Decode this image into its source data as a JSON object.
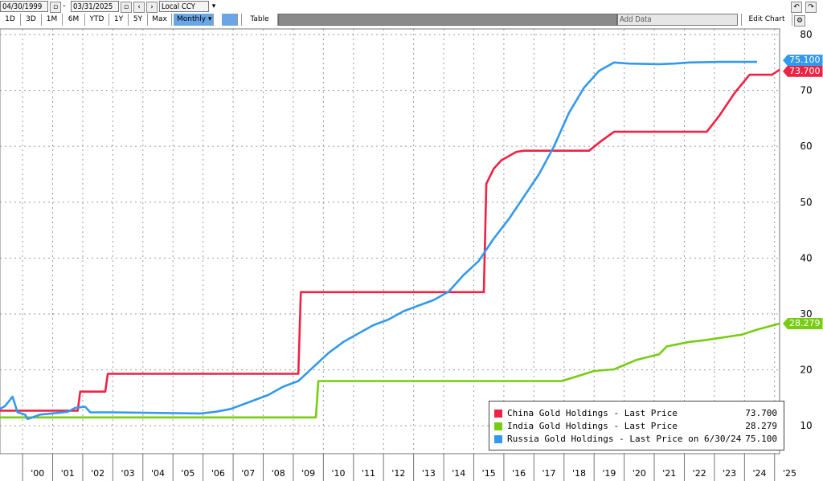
{
  "toolbar": {
    "start_date": "04/30/1999",
    "end_date": "03/31/2025",
    "currency": "Local CCY",
    "ranges": [
      "1D",
      "3D",
      "1M",
      "6M",
      "YTD",
      "1Y",
      "5Y",
      "Max"
    ],
    "frequency": "Monthly",
    "table_label": "Table",
    "add_data_placeholder": "Add Data",
    "edit_chart_label": "Edit Chart"
  },
  "colors": {
    "china": "#ee2244",
    "india": "#77cc11",
    "russia": "#3399ee"
  },
  "last_value_tags": {
    "china": "73.700",
    "india": "28.279",
    "russia": "75.100"
  },
  "legend": [
    {
      "name": "China Gold Holdings - Last Price",
      "value": "73.700",
      "color": "#ee2244"
    },
    {
      "name": "India Gold Holdings - Last Price",
      "value": "28.279",
      "color": "#77cc11"
    },
    {
      "name": "Russia Gold Holdings - Last Price on 6/30/24",
      "value": "75.100",
      "color": "#3399ee"
    }
  ],
  "chart_data": {
    "type": "line",
    "title": "",
    "xlabel": "",
    "ylabel": "",
    "x_ticks": [
      "'00",
      "'01",
      "'02",
      "'03",
      "'04",
      "'05",
      "'06",
      "'07",
      "'08",
      "'09",
      "'10",
      "'11",
      "'12",
      "'13",
      "'14",
      "'15",
      "'16",
      "'17",
      "'18",
      "'19",
      "'20",
      "'21",
      "'22",
      "'23",
      "'24",
      "'25"
    ],
    "y_ticks": [
      10,
      20,
      30,
      40,
      50,
      60,
      70,
      80
    ],
    "ylim": [
      5,
      81
    ],
    "xlim": [
      "1999-04",
      "2025-03"
    ],
    "grid": true,
    "legend_position": "bottom-right",
    "series": [
      {
        "name": "China Gold Holdings - Last Price",
        "color": "#ee2244",
        "points": [
          [
            "1999-04",
            12.7
          ],
          [
            "2001-11",
            12.7
          ],
          [
            "2001-12",
            16.1
          ],
          [
            "2002-10",
            16.1
          ],
          [
            "2002-11",
            19.3
          ],
          [
            "2009-03",
            19.3
          ],
          [
            "2009-04",
            33.9
          ],
          [
            "2015-05",
            33.9
          ],
          [
            "2015-06",
            53.3
          ],
          [
            "2015-09",
            56.0
          ],
          [
            "2015-12",
            57.5
          ],
          [
            "2016-06",
            59.0
          ],
          [
            "2016-09",
            59.2
          ],
          [
            "2018-11",
            59.2
          ],
          [
            "2019-04",
            61.0
          ],
          [
            "2019-09",
            62.6
          ],
          [
            "2022-10",
            62.6
          ],
          [
            "2023-03",
            65.5
          ],
          [
            "2023-09",
            69.5
          ],
          [
            "2024-03",
            72.8
          ],
          [
            "2024-12",
            72.8
          ],
          [
            "2025-03",
            73.7
          ]
        ]
      },
      {
        "name": "India Gold Holdings - Last Price",
        "color": "#77cc11",
        "points": [
          [
            "1999-04",
            11.5
          ],
          [
            "2009-10",
            11.5
          ],
          [
            "2009-11",
            18.0
          ],
          [
            "2017-12",
            18.0
          ],
          [
            "2018-06",
            18.8
          ],
          [
            "2019-01",
            19.8
          ],
          [
            "2019-09",
            20.1
          ],
          [
            "2020-06",
            21.8
          ],
          [
            "2021-03",
            22.8
          ],
          [
            "2021-06",
            24.2
          ],
          [
            "2022-03",
            25.0
          ],
          [
            "2022-09",
            25.3
          ],
          [
            "2023-06",
            25.9
          ],
          [
            "2023-12",
            26.3
          ],
          [
            "2024-06",
            27.2
          ],
          [
            "2025-03",
            28.28
          ]
        ]
      },
      {
        "name": "Russia Gold Holdings - Last Price on 6/30/24",
        "color": "#3399ee",
        "points": [
          [
            "1999-04",
            13.0
          ],
          [
            "1999-06",
            13.5
          ],
          [
            "1999-09",
            15.2
          ],
          [
            "1999-11",
            12.4
          ],
          [
            "2000-02",
            12.0
          ],
          [
            "2000-03",
            11.2
          ],
          [
            "2000-08",
            12.0
          ],
          [
            "2001-03",
            12.3
          ],
          [
            "2001-07",
            12.5
          ],
          [
            "2001-10",
            13.2
          ],
          [
            "2002-02",
            13.4
          ],
          [
            "2002-04",
            12.4
          ],
          [
            "2003-01",
            12.4
          ],
          [
            "2005-12",
            12.2
          ],
          [
            "2006-06",
            12.5
          ],
          [
            "2006-12",
            13.0
          ],
          [
            "2007-06",
            14.0
          ],
          [
            "2008-03",
            15.5
          ],
          [
            "2008-09",
            17.0
          ],
          [
            "2009-03",
            18.0
          ],
          [
            "2009-09",
            20.5
          ],
          [
            "2010-03",
            23.0
          ],
          [
            "2010-09",
            25.0
          ],
          [
            "2011-03",
            26.5
          ],
          [
            "2011-09",
            28.0
          ],
          [
            "2012-03",
            29.0
          ],
          [
            "2012-09",
            30.5
          ],
          [
            "2013-03",
            31.5
          ],
          [
            "2013-09",
            32.5
          ],
          [
            "2014-03",
            34.0
          ],
          [
            "2014-09",
            37.0
          ],
          [
            "2015-03",
            39.5
          ],
          [
            "2015-09",
            43.5
          ],
          [
            "2016-03",
            47.0
          ],
          [
            "2016-09",
            51.0
          ],
          [
            "2017-03",
            55.0
          ],
          [
            "2017-09",
            60.0
          ],
          [
            "2018-03",
            66.0
          ],
          [
            "2018-09",
            70.5
          ],
          [
            "2019-03",
            73.5
          ],
          [
            "2019-09",
            75.0
          ],
          [
            "2020-03",
            74.8
          ],
          [
            "2021-03",
            74.7
          ],
          [
            "2021-09",
            74.8
          ],
          [
            "2022-03",
            75.0
          ],
          [
            "2023-03",
            75.1
          ],
          [
            "2024-06",
            75.1
          ]
        ]
      }
    ]
  }
}
